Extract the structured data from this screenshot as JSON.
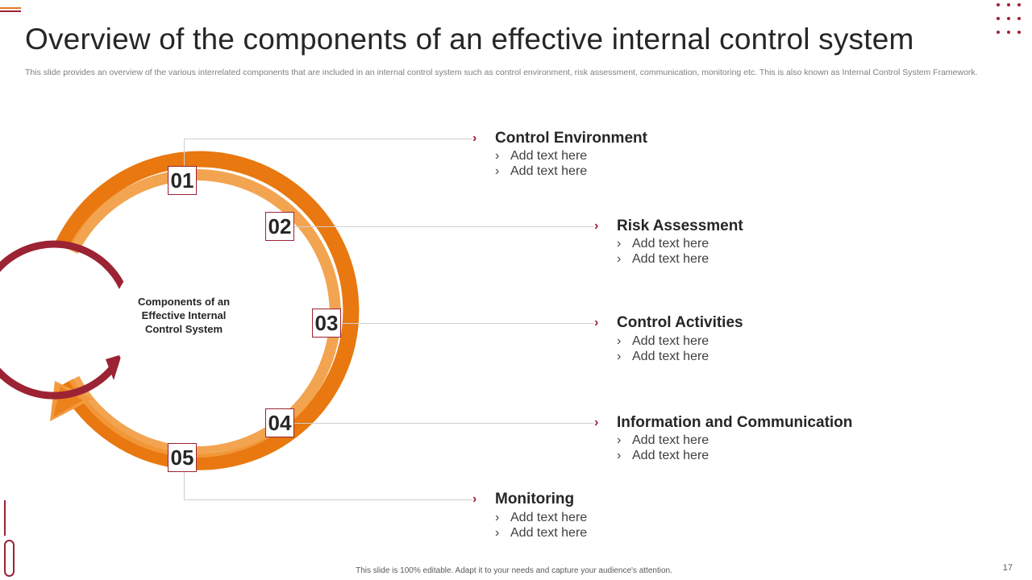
{
  "title": "Overview of the components of an effective internal control system",
  "subtitle": "This slide provides an overview of the various interrelated components that are included in an internal control system such as control environment, risk assessment, communication, monitoring etc. This is also known as Internal Control System Framework.",
  "center_label": "Components of an Effective Internal Control System",
  "colors": {
    "orange_dark": "#e8780f",
    "orange_light": "#f29a3d",
    "maroon": "#9b2333"
  },
  "components": [
    {
      "number": "01",
      "title": "Control Environment",
      "bullets": [
        "Add text here",
        "Add text here"
      ]
    },
    {
      "number": "02",
      "title": "Risk Assessment",
      "bullets": [
        "Add text here",
        "Add text here"
      ]
    },
    {
      "number": "03",
      "title": "Control Activities",
      "bullets": [
        "Add text here",
        "Add text here"
      ]
    },
    {
      "number": "04",
      "title": "Information and Communication",
      "bullets": [
        "Add text here",
        "Add text here"
      ]
    },
    {
      "number": "05",
      "title": "Monitoring",
      "bullets": [
        "Add text here",
        "Add text here"
      ]
    }
  ],
  "footer": "This slide is 100% editable.  Adapt it to your needs and capture your audience's attention.",
  "page_number": "17"
}
